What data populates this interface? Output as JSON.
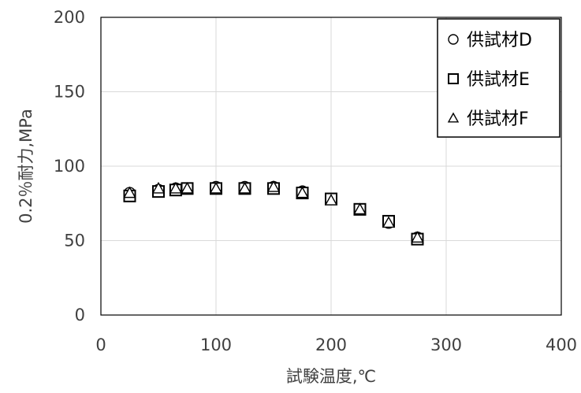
{
  "chart_data": {
    "type": "scatter",
    "xlabel": "試験温度,℃",
    "ylabel": "0.2％耐力,MPa",
    "xlim": [
      0,
      400
    ],
    "ylim": [
      0,
      200
    ],
    "x_ticks": [
      0,
      100,
      200,
      300,
      400
    ],
    "y_ticks": [
      0,
      50,
      100,
      150,
      200
    ],
    "x_tick_labels": [
      "0",
      "100",
      "200",
      "300",
      "400"
    ],
    "y_tick_labels": [
      "0",
      "50",
      "100",
      "150",
      "200"
    ],
    "grid": true,
    "legend_position": "top-right",
    "series": [
      {
        "name": "供試材D",
        "marker": "circle",
        "x": [
          25,
          50,
          65,
          75,
          100,
          125,
          150,
          175,
          200,
          225,
          250,
          275
        ],
        "y": [
          82,
          84,
          85,
          85,
          86,
          86,
          86,
          83,
          78,
          71,
          62,
          52
        ]
      },
      {
        "name": "供試材E",
        "marker": "square",
        "x": [
          25,
          50,
          65,
          75,
          100,
          125,
          150,
          175,
          200,
          225,
          250,
          275
        ],
        "y": [
          80,
          83,
          84,
          85,
          85,
          85,
          85,
          82,
          78,
          71,
          63,
          51
        ]
      },
      {
        "name": "供試材F",
        "marker": "triangle",
        "x": [
          25,
          50,
          65,
          75,
          100,
          125,
          150,
          175,
          200,
          225,
          250,
          275
        ],
        "y": [
          82,
          85,
          85,
          85,
          85,
          85,
          86,
          82,
          77,
          71,
          62,
          52
        ]
      }
    ]
  }
}
